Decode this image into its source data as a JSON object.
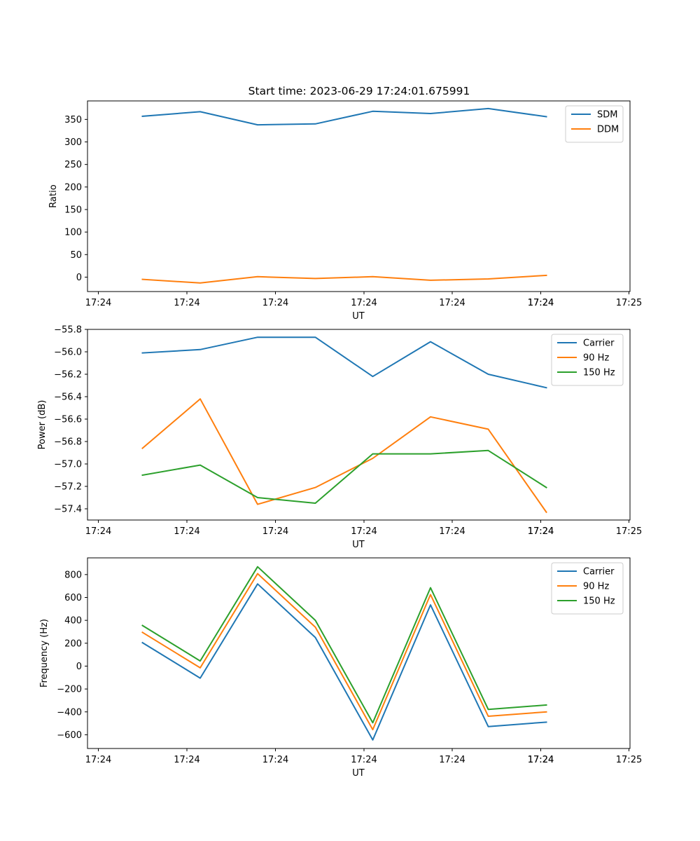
{
  "title": "Start time: 2023-06-29 17:24:01.675991",
  "chart_data": [
    {
      "type": "line",
      "title": "Start time: 2023-06-29 17:24:01.675991",
      "xlabel": "UT",
      "ylabel": "Ratio",
      "x_tick_labels": [
        "17:24",
        "17:24",
        "17:24",
        "17:24",
        "17:24",
        "17:24",
        "17:24",
        "17:25"
      ],
      "y_ticks": [
        0,
        50,
        100,
        150,
        200,
        250,
        300,
        350
      ],
      "ylim": [
        -32,
        391
      ],
      "grid": false,
      "legend": "upper right",
      "series": [
        {
          "name": "SDM",
          "color": "#1f77b4",
          "values": [
            357,
            367,
            338,
            340,
            368,
            363,
            374,
            356
          ]
        },
        {
          "name": "DDM",
          "color": "#ff7f0e",
          "values": [
            -5,
            -13,
            1,
            -3,
            1,
            -7,
            -4,
            4
          ]
        }
      ]
    },
    {
      "type": "line",
      "title": "",
      "xlabel": "UT",
      "ylabel": "Power (dB)",
      "x_tick_labels": [
        "17:24",
        "17:24",
        "17:24",
        "17:24",
        "17:24",
        "17:24",
        "17:24",
        "17:25"
      ],
      "y_ticks": [
        -57.4,
        -57.2,
        -57.0,
        -56.8,
        -56.6,
        -56.4,
        -56.2,
        -56.0,
        -55.8
      ],
      "ylim": [
        -57.5,
        -55.8
      ],
      "grid": false,
      "legend": "upper right",
      "series": [
        {
          "name": "Carrier",
          "color": "#1f77b4",
          "values": [
            -56.01,
            -55.98,
            -55.87,
            -55.87,
            -56.22,
            -55.91,
            -56.2,
            -56.32
          ]
        },
        {
          "name": "90 Hz",
          "color": "#ff7f0e",
          "values": [
            -56.86,
            -56.42,
            -57.36,
            -57.21,
            -56.95,
            -56.58,
            -56.69,
            -57.43
          ]
        },
        {
          "name": "150 Hz",
          "color": "#2ca02c",
          "values": [
            -57.1,
            -57.01,
            -57.3,
            -57.35,
            -56.91,
            -56.91,
            -56.88,
            -57.21
          ]
        }
      ]
    },
    {
      "type": "line",
      "title": "",
      "xlabel": "UT",
      "ylabel": "Frequency (Hz)",
      "x_tick_labels": [
        "17:24",
        "17:24",
        "17:24",
        "17:24",
        "17:24",
        "17:24",
        "17:24",
        "17:25"
      ],
      "y_ticks": [
        -600,
        -400,
        -200,
        0,
        200,
        400,
        600,
        800
      ],
      "ylim": [
        -720,
        946
      ],
      "grid": false,
      "legend": "upper right",
      "series": [
        {
          "name": "Carrier",
          "color": "#1f77b4",
          "values": [
            205,
            -105,
            718,
            250,
            -645,
            535,
            -528,
            -490
          ]
        },
        {
          "name": "90 Hz",
          "color": "#ff7f0e",
          "values": [
            295,
            -15,
            808,
            340,
            -555,
            625,
            -438,
            -400
          ]
        },
        {
          "name": "150 Hz",
          "color": "#2ca02c",
          "values": [
            355,
            45,
            868,
            400,
            -495,
            685,
            -378,
            -340
          ]
        }
      ]
    }
  ]
}
